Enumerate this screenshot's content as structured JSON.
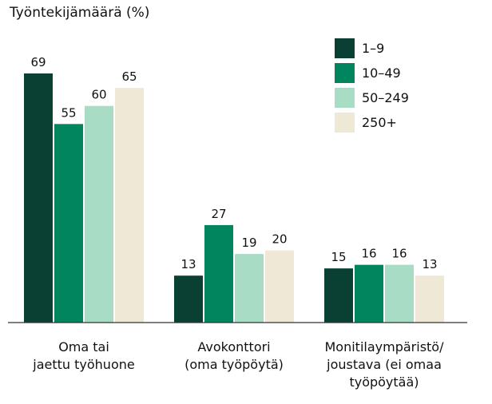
{
  "chart_data": {
    "type": "bar",
    "title": "Työntekijämäärä (%)",
    "categories": [
      [
        "Oma tai",
        "jaettu työhuone"
      ],
      [
        "Avokonttori",
        "(oma työpöytä)"
      ],
      [
        "Monitilaympäristö/",
        "joustava (ei omaa",
        "työpöytää)"
      ]
    ],
    "series": [
      {
        "name": "1–9",
        "color": "#0a4033",
        "values": [
          69,
          13,
          15
        ]
      },
      {
        "name": "10–49",
        "color": "#00855f",
        "values": [
          55,
          27,
          16
        ]
      },
      {
        "name": "50–249",
        "color": "#a8dcc4",
        "values": [
          60,
          19,
          16
        ]
      },
      {
        "name": "250+",
        "color": "#efe8d6",
        "values": [
          65,
          20,
          13
        ]
      }
    ],
    "ylim": [
      0,
      80
    ],
    "grid": false,
    "legend": "top-right"
  }
}
